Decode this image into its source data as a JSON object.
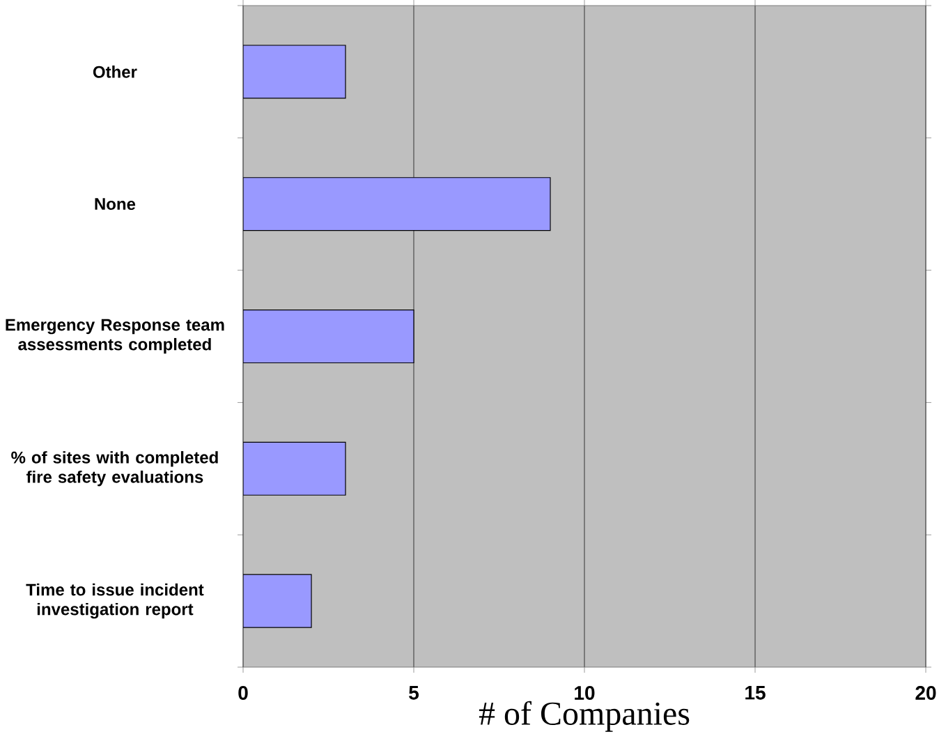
{
  "chart_data": {
    "type": "bar",
    "orientation": "horizontal",
    "categories": [
      "Other",
      "None",
      "Emergency Response team assessments completed",
      "% of sites with completed fire safety evaluations",
      "Time to issue incident investigation report"
    ],
    "values": [
      3,
      9,
      5,
      3,
      2
    ],
    "color": "#9999ff",
    "xlim": [
      0,
      20
    ],
    "xticks": [
      0,
      5,
      10,
      15,
      20
    ],
    "xlabel": "# of Companies",
    "grid": "x"
  }
}
